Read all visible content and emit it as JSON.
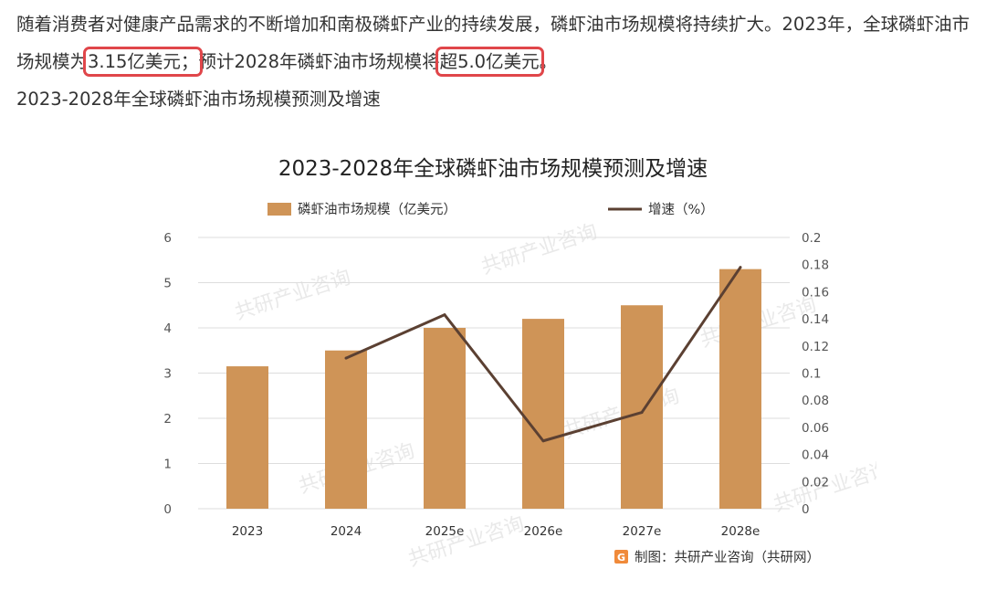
{
  "article": {
    "para_before_1": "随着消费者对健康产品需求的不断增加和南极磷虾产业的持续发展，磷虾油市场规模将持续扩大。2023年，全球磷虾油市场规模为",
    "value_2023": "3.15亿美元；",
    "para_mid": "预计2028年磷虾油市场规模将",
    "value_2028": "超5.0亿美元",
    "para_end": "。",
    "subtitle": "2023-2028年全球磷虾油市场规模预测及增速"
  },
  "colors": {
    "bar": "#cf9457",
    "line": "#5b4032",
    "highlight": "#e0464a",
    "grid": "#dddddd"
  },
  "chart_data": {
    "type": "bar",
    "title": "2023-2028年全球磷虾油市场规模预测及增速",
    "categories": [
      "2023",
      "2024",
      "2025e",
      "2026e",
      "2027e",
      "2028e"
    ],
    "series": [
      {
        "name": "磷虾油市场规模（亿美元）",
        "type": "bar",
        "axis": "left",
        "values": [
          3.15,
          3.5,
          4.0,
          4.2,
          4.5,
          5.3
        ]
      },
      {
        "name": "增速（%）",
        "type": "line",
        "axis": "right",
        "values": [
          null,
          0.111,
          0.143,
          0.05,
          0.071,
          0.178
        ]
      }
    ],
    "y_left": {
      "min": 0,
      "max": 6,
      "ticks": [
        "0",
        "1",
        "2",
        "3",
        "4",
        "5",
        "6"
      ]
    },
    "y_right": {
      "min": 0,
      "max": 0.2,
      "ticks": [
        "0",
        "0.02",
        "0.04",
        "0.06",
        "0.08",
        "0.1",
        "0.12",
        "0.14",
        "0.16",
        "0.18",
        "0.2"
      ]
    },
    "legend_position": "top",
    "grid": true,
    "source": "制图：共研产业咨询（共研网）",
    "watermark": "共研产业咨询"
  }
}
